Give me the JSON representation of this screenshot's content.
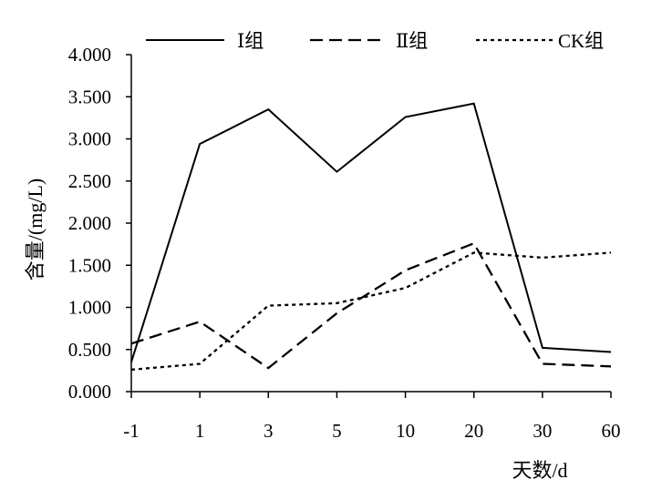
{
  "chart_data": {
    "type": "line",
    "categories": [
      "-1",
      "1",
      "3",
      "5",
      "10",
      "20",
      "30",
      "60"
    ],
    "series": [
      {
        "name": "Ⅰ组",
        "style": "solid",
        "values": [
          0.35,
          2.94,
          3.35,
          2.61,
          3.26,
          3.42,
          0.52,
          0.47
        ]
      },
      {
        "name": "Ⅱ组",
        "style": "dashed",
        "values": [
          0.57,
          0.83,
          0.28,
          0.93,
          1.44,
          1.76,
          0.33,
          0.3
        ]
      },
      {
        "name": "CK组",
        "style": "dotted",
        "values": [
          0.26,
          0.33,
          1.02,
          1.05,
          1.23,
          1.65,
          1.59,
          1.65
        ]
      }
    ],
    "yticks": [
      "0.000",
      "0.500",
      "1.000",
      "1.500",
      "2.000",
      "2.500",
      "3.000",
      "3.500",
      "4.000"
    ],
    "ylim": [
      0,
      4
    ],
    "xlabel": "天数/d",
    "ylabel": "含量/(mg/L)",
    "title": "",
    "grid": false,
    "legend_position": "top",
    "line_color": "#000000"
  }
}
